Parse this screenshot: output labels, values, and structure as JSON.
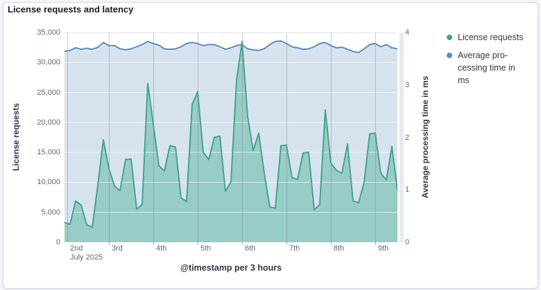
{
  "panel": {
    "title": "License requests and latency"
  },
  "colors": {
    "page_bg": "#f4f6f9",
    "panel_border": "#d3dae6",
    "panel_title_text": "#1a1c21",
    "axis_title_text": "#343741",
    "tick_text": "#5f6875",
    "teal_accent": "#44A38F",
    "blue_accent": "#5B8DBE",
    "partial_band": "#e7eaf0"
  },
  "chart_data": {
    "type": "area",
    "title": "License requests and latency",
    "bucket_interval": "3 hours",
    "x_axis": {
      "title": "@timestamp per 3 hours",
      "tick_labels": [
        "2nd",
        "3rd",
        "4th",
        "5th",
        "6th",
        "7th",
        "8th",
        "9th"
      ],
      "first_tick_sublabel": "July 2025"
    },
    "y_axis_left": {
      "title": "License requests",
      "range": [
        0,
        35000
      ],
      "tick_labels": [
        "0",
        "5,000",
        "10,000",
        "15,000",
        "20,000",
        "25,000",
        "30,000",
        "35,000"
      ]
    },
    "y_axis_right": {
      "title": "Average processing time in ms",
      "range": [
        0,
        4
      ],
      "tick_labels": [
        "0",
        "1",
        "2",
        "3",
        "4"
      ]
    },
    "grid": {
      "horizontal": true,
      "vertical_days": true
    },
    "legend": {
      "position": "right",
      "items": [
        {
          "label": "License requests",
          "lines": [
            "License requests"
          ],
          "color": "#44A38F"
        },
        {
          "label": "Average processing time in ms",
          "lines": [
            "Average pro-",
            "cessing time in",
            "ms"
          ],
          "color": "#5B8DBE"
        }
      ]
    },
    "series": [
      {
        "name": "License requests",
        "axis": "left",
        "line_color": "#44A38F",
        "fill_color": "rgba(84,179,153,0.48)",
        "values": [
          3300,
          3000,
          6900,
          6200,
          2900,
          2500,
          9500,
          17100,
          12300,
          9400,
          8600,
          13800,
          13900,
          5500,
          6300,
          26500,
          19700,
          12800,
          11900,
          16100,
          15900,
          7400,
          6800,
          23000,
          25100,
          15000,
          13800,
          17500,
          17700,
          8500,
          10100,
          27000,
          33500,
          21000,
          15300,
          18200,
          11500,
          5900,
          5700,
          16100,
          16200,
          10800,
          10500,
          14900,
          15000,
          5400,
          6300,
          22100,
          13200,
          12000,
          11500,
          16400,
          6900,
          6600,
          10000,
          18100,
          18200,
          11500,
          10400,
          16000,
          8700
        ]
      },
      {
        "name": "Average processing time in ms",
        "axis": "right",
        "line_color": "#5B8DBE",
        "fill_color": "rgba(96,146,192,0.26)",
        "values": [
          3.64,
          3.66,
          3.71,
          3.68,
          3.7,
          3.68,
          3.72,
          3.81,
          3.75,
          3.75,
          3.69,
          3.67,
          3.69,
          3.73,
          3.77,
          3.83,
          3.79,
          3.76,
          3.69,
          3.68,
          3.69,
          3.73,
          3.79,
          3.81,
          3.79,
          3.75,
          3.77,
          3.77,
          3.73,
          3.68,
          3.71,
          3.75,
          3.77,
          3.69,
          3.67,
          3.66,
          3.69,
          3.77,
          3.83,
          3.84,
          3.79,
          3.73,
          3.71,
          3.68,
          3.69,
          3.73,
          3.79,
          3.81,
          3.75,
          3.71,
          3.72,
          3.68,
          3.64,
          3.62,
          3.69,
          3.77,
          3.79,
          3.73,
          3.77,
          3.71,
          3.69
        ]
      }
    ]
  }
}
